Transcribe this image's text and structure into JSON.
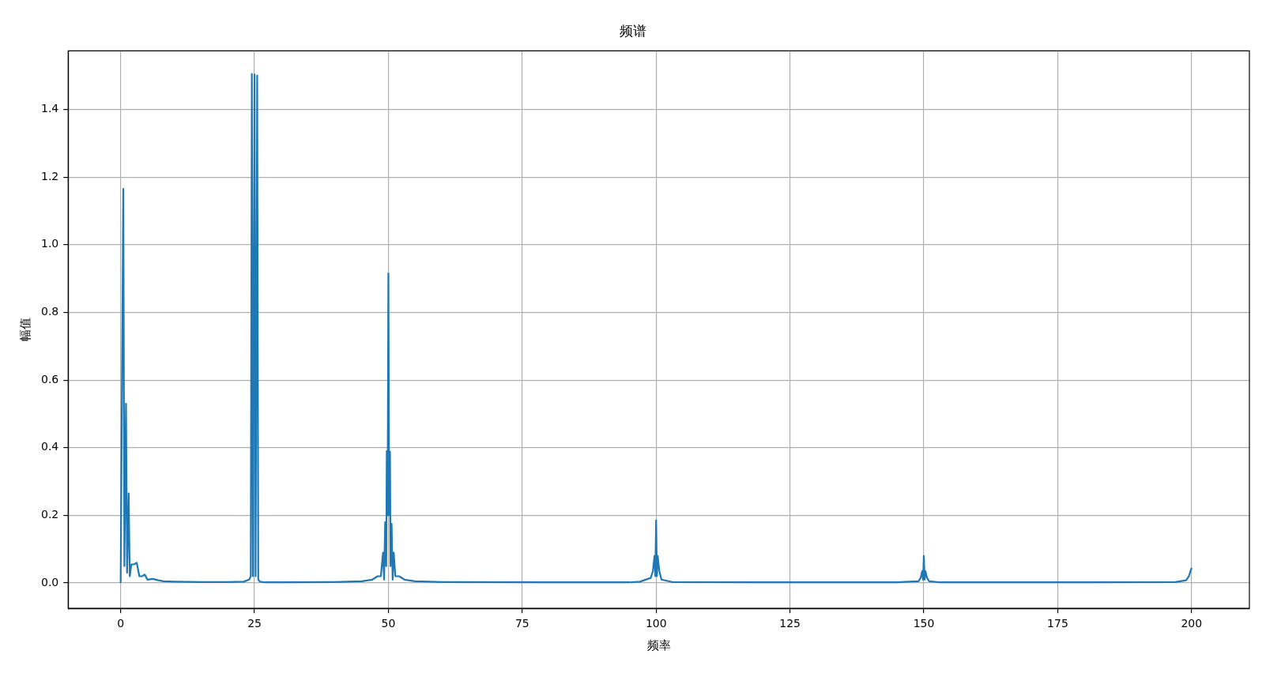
{
  "chart_data": {
    "type": "line",
    "title": "频谱",
    "xlabel": "频率",
    "ylabel": "幅值",
    "grid": true,
    "legend": false,
    "marker": "none",
    "line_style": "solid",
    "xlim": [
      -9.8,
      210.8
    ],
    "xticks": [
      0,
      25,
      50,
      75,
      100,
      125,
      150,
      175,
      200
    ],
    "ylim": [
      -0.075,
      1.573
    ],
    "yticks": [
      {
        "value": 0,
        "label": "0.0"
      },
      {
        "value": 0.2,
        "label": "0.2"
      },
      {
        "value": 0.4,
        "label": "0.4"
      },
      {
        "value": 0.6,
        "label": "0.6"
      },
      {
        "value": 0.8,
        "label": "0.8"
      },
      {
        "value": 1.0,
        "label": "1.0"
      },
      {
        "value": 1.2,
        "label": "1.2"
      },
      {
        "value": 1.4,
        "label": "1.4"
      }
    ],
    "series": [
      {
        "color": "#1f77b4",
        "x": [
          0,
          0.5,
          0.7,
          1.0,
          1.2,
          1.5,
          1.7,
          2.0,
          2.5,
          3.0,
          3.5,
          4.0,
          4.5,
          5.0,
          6.0,
          7.0,
          8.0,
          10,
          15,
          20,
          23,
          24,
          24.3,
          24.5,
          24.7,
          25.0,
          25.2,
          25.5,
          25.7,
          26,
          27,
          30,
          40,
          45,
          47,
          48,
          48.6,
          49.0,
          49.2,
          49.4,
          49.6,
          49.7,
          49.85,
          50.0,
          50.15,
          50.3,
          50.4,
          50.6,
          50.8,
          51.0,
          51.3,
          52,
          53,
          55,
          60,
          80,
          95,
          97,
          99,
          99.4,
          99.7,
          99.85,
          100,
          100.15,
          100.3,
          100.6,
          101,
          103,
          120,
          145,
          149,
          149.4,
          149.7,
          149.85,
          150,
          150.15,
          150.3,
          150.6,
          151,
          153,
          180,
          197,
          199,
          199.5,
          200
        ],
        "values": [
          0,
          1.165,
          0.05,
          0.53,
          0.03,
          0.265,
          0.02,
          0.055,
          0.055,
          0.06,
          0.02,
          0.02,
          0.025,
          0.01,
          0.012,
          0.008,
          0.005,
          0.004,
          0.003,
          0.003,
          0.004,
          0.01,
          0.02,
          1.505,
          0.02,
          1.503,
          0.02,
          1.5,
          0.01,
          0.004,
          0.002,
          0.002,
          0.003,
          0.005,
          0.01,
          0.02,
          0.02,
          0.09,
          0.01,
          0.18,
          0.05,
          0.39,
          0.2,
          0.915,
          0.2,
          0.388,
          0.05,
          0.175,
          0.01,
          0.09,
          0.02,
          0.02,
          0.01,
          0.005,
          0.003,
          0.002,
          0.002,
          0.004,
          0.015,
          0.035,
          0.08,
          0.02,
          0.185,
          0.02,
          0.08,
          0.035,
          0.01,
          0.003,
          0.002,
          0.002,
          0.005,
          0.015,
          0.035,
          0.01,
          0.08,
          0.01,
          0.035,
          0.015,
          0.005,
          0.002,
          0.002,
          0.003,
          0.008,
          0.02,
          0.045
        ]
      }
    ]
  }
}
